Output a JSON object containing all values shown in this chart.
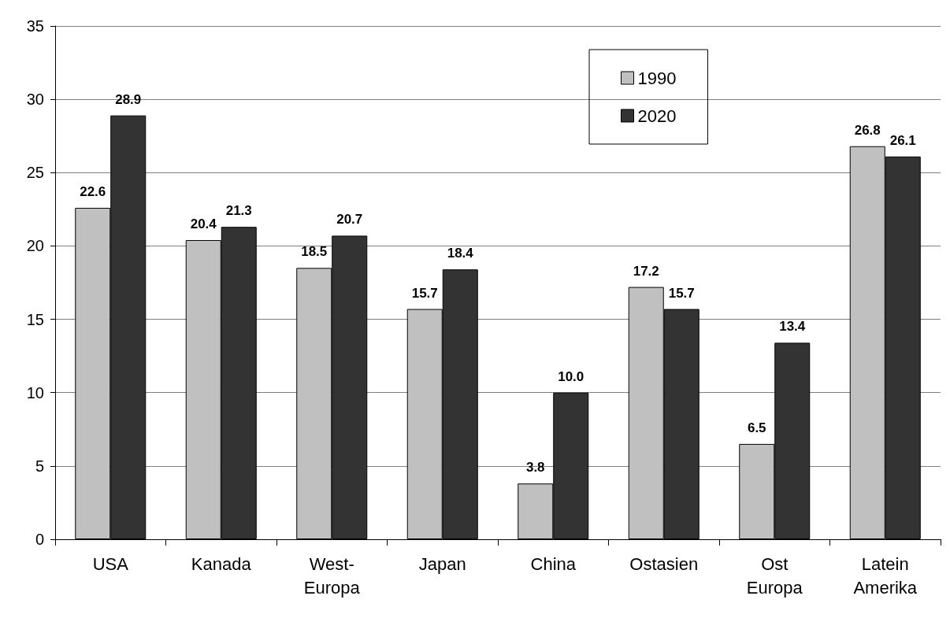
{
  "chart_data": {
    "type": "bar",
    "categories": [
      "USA",
      "Kanada",
      "West-\nEuropa",
      "Japan",
      "China",
      "Ostasien",
      "Ost\nEuropa",
      "Latein\nAmerika"
    ],
    "series": [
      {
        "name": "1990",
        "color": "#c0c0c0",
        "values": [
          22.6,
          20.4,
          18.5,
          15.7,
          3.8,
          17.2,
          6.5,
          26.8
        ],
        "value_labels": [
          "22.6",
          "20.4",
          "18.5",
          "15.7",
          "3.8",
          "17.2",
          "6.5",
          "26.8"
        ]
      },
      {
        "name": "2020",
        "color": "#333333",
        "values": [
          28.9,
          21.3,
          20.7,
          18.4,
          10.0,
          15.7,
          13.4,
          26.1
        ],
        "value_labels": [
          "28.9",
          "21.3",
          "20.7",
          "18.4",
          "10.0",
          "15.7",
          "13.4",
          "26.1"
        ]
      }
    ],
    "ylim": [
      0,
      35
    ],
    "yticks": [
      0,
      5,
      10,
      15,
      20,
      25,
      30,
      35
    ],
    "grid": "y",
    "legend": "top right"
  }
}
